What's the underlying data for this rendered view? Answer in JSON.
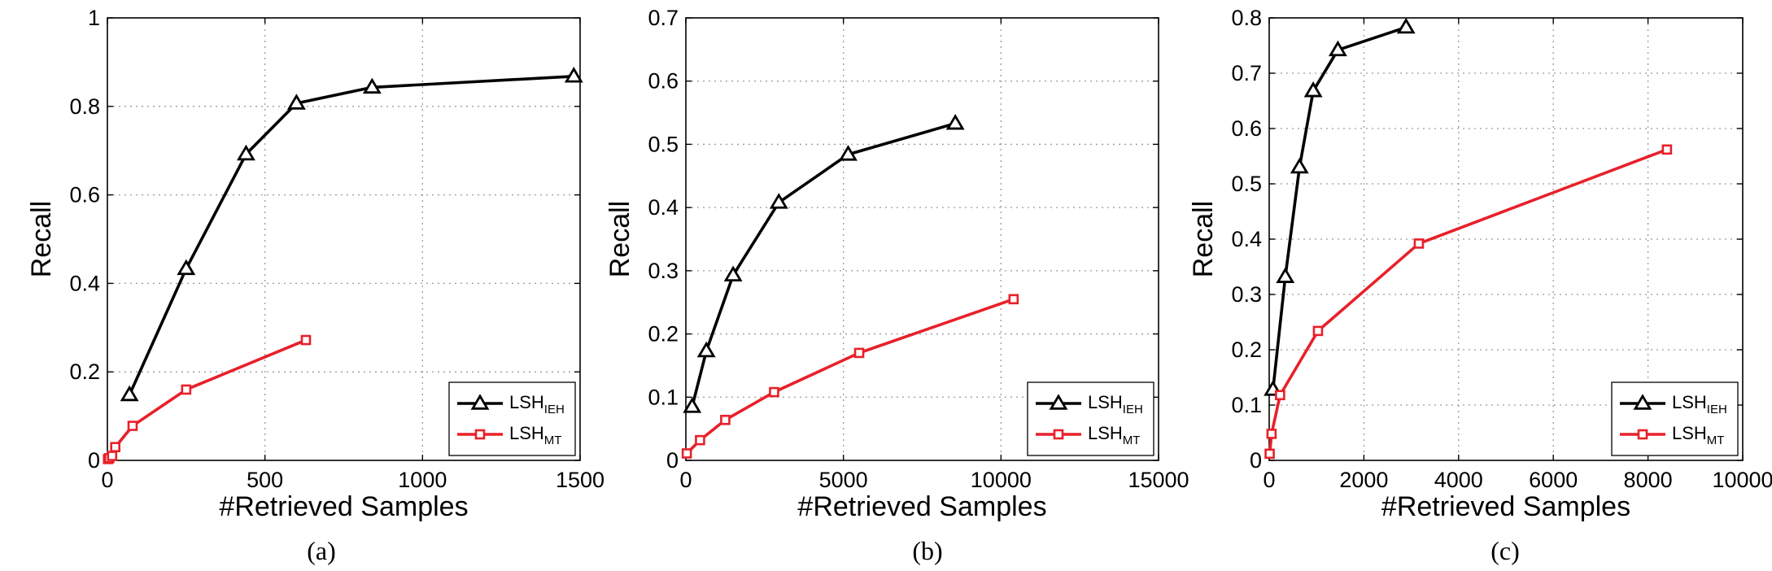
{
  "chart_data": [
    {
      "type": "line",
      "caption": "(a)",
      "xlabel": "#Retrieved Samples",
      "ylabel": "Recall",
      "xlim": [
        0,
        1500
      ],
      "ylim": [
        0,
        1
      ],
      "xticks": [
        0,
        500,
        1000,
        1500
      ],
      "xtick_labels": [
        "0",
        "500",
        "1000",
        "1500"
      ],
      "yticks": [
        0,
        0.2,
        0.4,
        0.6,
        0.8,
        1
      ],
      "ytick_labels": [
        "0",
        "0.2",
        "0.4",
        "0.6",
        "0.8",
        "1"
      ],
      "grid": true,
      "legend_position": "bottom-right",
      "series": [
        {
          "name": "LSH",
          "name_sub": "IEH",
          "color": "#000000",
          "marker": "triangle",
          "x": [
            70,
            250,
            440,
            600,
            840,
            1480
          ],
          "y": [
            0.148,
            0.433,
            0.692,
            0.807,
            0.843,
            0.868
          ]
        },
        {
          "name": "LSH",
          "name_sub": "MT",
          "color": "#e8202a",
          "marker": "square",
          "x": [
            2,
            6,
            15,
            25,
            80,
            250,
            630
          ],
          "y": [
            0.003,
            0.005,
            0.01,
            0.03,
            0.078,
            0.16,
            0.272
          ]
        }
      ]
    },
    {
      "type": "line",
      "caption": "(b)",
      "xlabel": "#Retrieved Samples",
      "ylabel": "Recall",
      "xlim": [
        0,
        15000
      ],
      "ylim": [
        0,
        0.7
      ],
      "xticks": [
        0,
        5000,
        10000,
        15000
      ],
      "xtick_labels": [
        "0",
        "5000",
        "10000",
        "15000"
      ],
      "yticks": [
        0,
        0.1,
        0.2,
        0.3,
        0.4,
        0.5,
        0.6,
        0.7
      ],
      "ytick_labels": [
        "0",
        "0.1",
        "0.2",
        "0.3",
        "0.4",
        "0.5",
        "0.6",
        "0.7"
      ],
      "grid": true,
      "legend_position": "bottom-right",
      "series": [
        {
          "name": "LSH",
          "name_sub": "IEH",
          "color": "#000000",
          "marker": "triangle",
          "x": [
            200,
            650,
            1500,
            2950,
            5150,
            8550
          ],
          "y": [
            0.085,
            0.173,
            0.293,
            0.408,
            0.484,
            0.533
          ]
        },
        {
          "name": "LSH",
          "name_sub": "MT",
          "color": "#e8202a",
          "marker": "square",
          "x": [
            30,
            450,
            1250,
            2800,
            5500,
            10400
          ],
          "y": [
            0.011,
            0.032,
            0.064,
            0.108,
            0.17,
            0.255
          ]
        }
      ]
    },
    {
      "type": "line",
      "caption": "(c)",
      "xlabel": "#Retrieved Samples",
      "ylabel": "Recall",
      "xlim": [
        0,
        10000
      ],
      "ylim": [
        0,
        0.8
      ],
      "xticks": [
        0,
        2000,
        4000,
        6000,
        8000,
        10000
      ],
      "xtick_labels": [
        "0",
        "2000",
        "4000",
        "6000",
        "8000",
        "10000"
      ],
      "yticks": [
        0,
        0.1,
        0.2,
        0.3,
        0.4,
        0.5,
        0.6,
        0.7,
        0.8
      ],
      "ytick_labels": [
        "0",
        "0.1",
        "0.2",
        "0.3",
        "0.4",
        "0.5",
        "0.6",
        "0.7",
        "0.8"
      ],
      "grid": true,
      "legend_position": "bottom-right",
      "series": [
        {
          "name": "LSH",
          "name_sub": "IEH",
          "color": "#000000",
          "marker": "triangle",
          "x": [
            80,
            340,
            640,
            930,
            1450,
            2890
          ],
          "y": [
            0.128,
            0.332,
            0.53,
            0.668,
            0.742,
            0.783
          ]
        },
        {
          "name": "LSH",
          "name_sub": "MT",
          "color": "#e8202a",
          "marker": "square",
          "x": [
            10,
            50,
            230,
            1030,
            3160,
            8400
          ],
          "y": [
            0.012,
            0.048,
            0.118,
            0.234,
            0.392,
            0.562
          ]
        }
      ]
    }
  ]
}
